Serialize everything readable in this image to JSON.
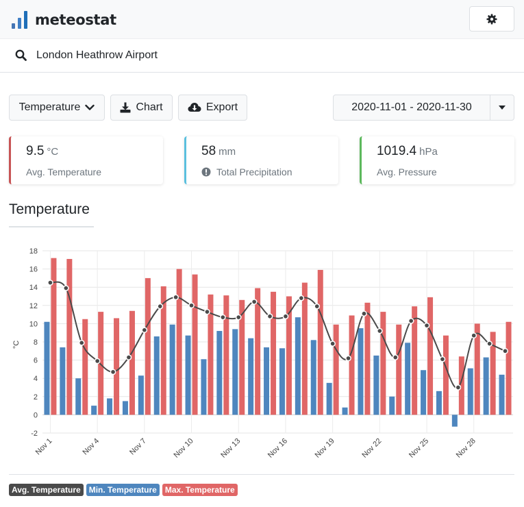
{
  "app": {
    "name": "meteostat",
    "logo_colors": [
      "#4575b4",
      "#4a7fc1",
      "#1f78b4"
    ]
  },
  "header": {
    "settings_icon": "gear-icon"
  },
  "search": {
    "value": "London Heathrow Airport",
    "icon": "search-icon"
  },
  "toolbar": {
    "parameter_label": "Temperature",
    "chart_label": "Chart",
    "export_label": "Export",
    "date_range": "2020-11-01 - 2020-11-30"
  },
  "stats": [
    {
      "value": "9.5",
      "unit": "°C",
      "label": "Avg. Temperature",
      "color": "#c75354"
    },
    {
      "value": "58",
      "unit": "mm",
      "label": "Total Precipitation",
      "color": "#5bc0de"
    },
    {
      "value": "1019.4",
      "unit": "hPa",
      "label": "Avg. Pressure",
      "color": "#5cb85c"
    }
  ],
  "section_title": "Temperature",
  "chart_data": {
    "type": "bar",
    "ylabel": "°C",
    "ylim": [
      -2,
      18
    ],
    "yticks": [
      -2,
      0,
      2,
      4,
      6,
      8,
      10,
      12,
      14,
      16,
      18
    ],
    "xtick_labels": [
      "Nov 1",
      "Nov 4",
      "Nov 7",
      "Nov 10",
      "Nov 13",
      "Nov 16",
      "Nov 19",
      "Nov 22",
      "Nov 25",
      "Nov 28"
    ],
    "xtick_days": [
      1,
      4,
      7,
      10,
      13,
      16,
      19,
      22,
      25,
      28
    ],
    "days": [
      1,
      2,
      3,
      4,
      5,
      6,
      7,
      8,
      9,
      10,
      11,
      12,
      13,
      14,
      15,
      16,
      17,
      18,
      19,
      20,
      21,
      22,
      23,
      24,
      25,
      26,
      27,
      28,
      29,
      30
    ],
    "grid": true,
    "legend_position": "bottom-left",
    "series": [
      {
        "name": "Avg. Temperature",
        "kind": "line",
        "color": "#4a4a4a",
        "values": [
          14.5,
          13.9,
          7.9,
          5.9,
          4.7,
          6.3,
          9.3,
          11.9,
          12.9,
          12.0,
          11.3,
          10.7,
          10.7,
          12.4,
          10.8,
          10.8,
          12.8,
          11.9,
          7.8,
          6.2,
          11.1,
          9.2,
          6.3,
          10.3,
          9.8,
          6.1,
          3.0,
          8.7,
          7.8,
          7.0
        ]
      },
      {
        "name": "Min. Temperature",
        "kind": "bar",
        "color": "#4e86be",
        "values": [
          10.2,
          7.4,
          4.0,
          1.0,
          1.8,
          1.5,
          4.3,
          8.6,
          9.9,
          8.7,
          6.1,
          9.2,
          9.4,
          8.4,
          7.4,
          7.3,
          10.7,
          8.2,
          3.5,
          0.8,
          9.5,
          6.5,
          2.0,
          7.9,
          4.9,
          2.6,
          -1.3,
          5.1,
          6.3,
          4.4
        ]
      },
      {
        "name": "Max. Temperature",
        "kind": "bar",
        "color": "#e06666",
        "values": [
          17.2,
          17.1,
          10.5,
          11.3,
          10.6,
          11.4,
          15.0,
          14.1,
          16.0,
          15.4,
          13.2,
          13.1,
          12.6,
          13.9,
          13.5,
          13.0,
          14.5,
          15.9,
          9.9,
          10.9,
          12.3,
          11.3,
          9.9,
          11.9,
          12.9,
          8.7,
          6.4,
          10.0,
          9.1,
          10.2
        ]
      }
    ]
  }
}
